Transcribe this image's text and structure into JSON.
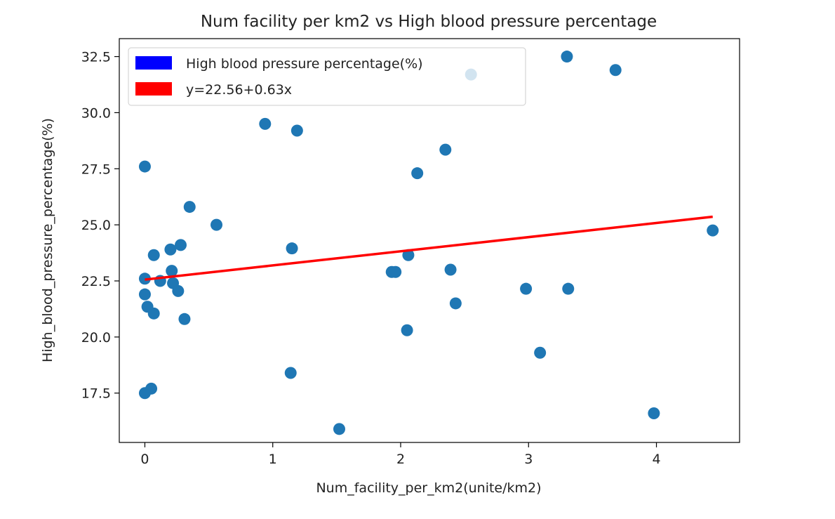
{
  "chart_data": {
    "type": "scatter",
    "title": "Num facility per km2 vs High blood pressure percentage",
    "xlabel": "Num_facility_per_km2(unite/km2)",
    "ylabel": "High_blood_pressure_percentage(%)",
    "xlim": [
      -0.2,
      4.65
    ],
    "ylim": [
      15.3,
      33.3
    ],
    "xticks": [
      0,
      1,
      2,
      3,
      4
    ],
    "xtick_labels": [
      "0",
      "1",
      "2",
      "3",
      "4"
    ],
    "yticks": [
      17.5,
      20.0,
      22.5,
      25.0,
      27.5,
      30.0,
      32.5
    ],
    "ytick_labels": [
      "17.5",
      "20.0",
      "22.5",
      "25.0",
      "27.5",
      "30.0",
      "32.5"
    ],
    "grid": false,
    "legend_position": "top-left",
    "legend": [
      {
        "label": "High blood pressure percentage(%)",
        "color": "#0000ff"
      },
      {
        "label": "y=22.56+0.63x",
        "color": "#ff0000"
      }
    ],
    "series": [
      {
        "type": "scatter",
        "color": "#1f77b4",
        "points": [
          {
            "x": 0.0,
            "y": 22.6
          },
          {
            "x": 0.0,
            "y": 21.9
          },
          {
            "x": 0.0,
            "y": 27.6
          },
          {
            "x": 0.0,
            "y": 17.5
          },
          {
            "x": 0.02,
            "y": 21.35
          },
          {
            "x": 0.05,
            "y": 17.7
          },
          {
            "x": 0.07,
            "y": 21.05
          },
          {
            "x": 0.07,
            "y": 23.65
          },
          {
            "x": 0.12,
            "y": 22.5
          },
          {
            "x": 0.2,
            "y": 23.9
          },
          {
            "x": 0.21,
            "y": 22.95
          },
          {
            "x": 0.22,
            "y": 22.4
          },
          {
            "x": 0.26,
            "y": 22.05
          },
          {
            "x": 0.28,
            "y": 24.1
          },
          {
            "x": 0.31,
            "y": 20.8
          },
          {
            "x": 0.35,
            "y": 25.8
          },
          {
            "x": 0.56,
            "y": 25.0
          },
          {
            "x": 0.94,
            "y": 29.5
          },
          {
            "x": 1.14,
            "y": 18.4
          },
          {
            "x": 1.15,
            "y": 23.95
          },
          {
            "x": 1.19,
            "y": 29.2
          },
          {
            "x": 1.52,
            "y": 15.9
          },
          {
            "x": 1.93,
            "y": 22.9
          },
          {
            "x": 1.96,
            "y": 22.9
          },
          {
            "x": 2.05,
            "y": 20.3
          },
          {
            "x": 2.06,
            "y": 23.65
          },
          {
            "x": 2.13,
            "y": 27.3
          },
          {
            "x": 2.35,
            "y": 28.35
          },
          {
            "x": 2.39,
            "y": 23.0
          },
          {
            "x": 2.43,
            "y": 21.5
          },
          {
            "x": 2.55,
            "y": 31.7
          },
          {
            "x": 2.98,
            "y": 22.15
          },
          {
            "x": 3.09,
            "y": 19.3
          },
          {
            "x": 3.3,
            "y": 32.5
          },
          {
            "x": 3.31,
            "y": 22.15
          },
          {
            "x": 3.68,
            "y": 31.9
          },
          {
            "x": 3.98,
            "y": 16.6
          },
          {
            "x": 4.44,
            "y": 24.75
          }
        ]
      },
      {
        "type": "line",
        "color": "#ff0000",
        "x": [
          0.0,
          4.44
        ],
        "y": [
          22.56,
          25.36
        ]
      }
    ]
  }
}
